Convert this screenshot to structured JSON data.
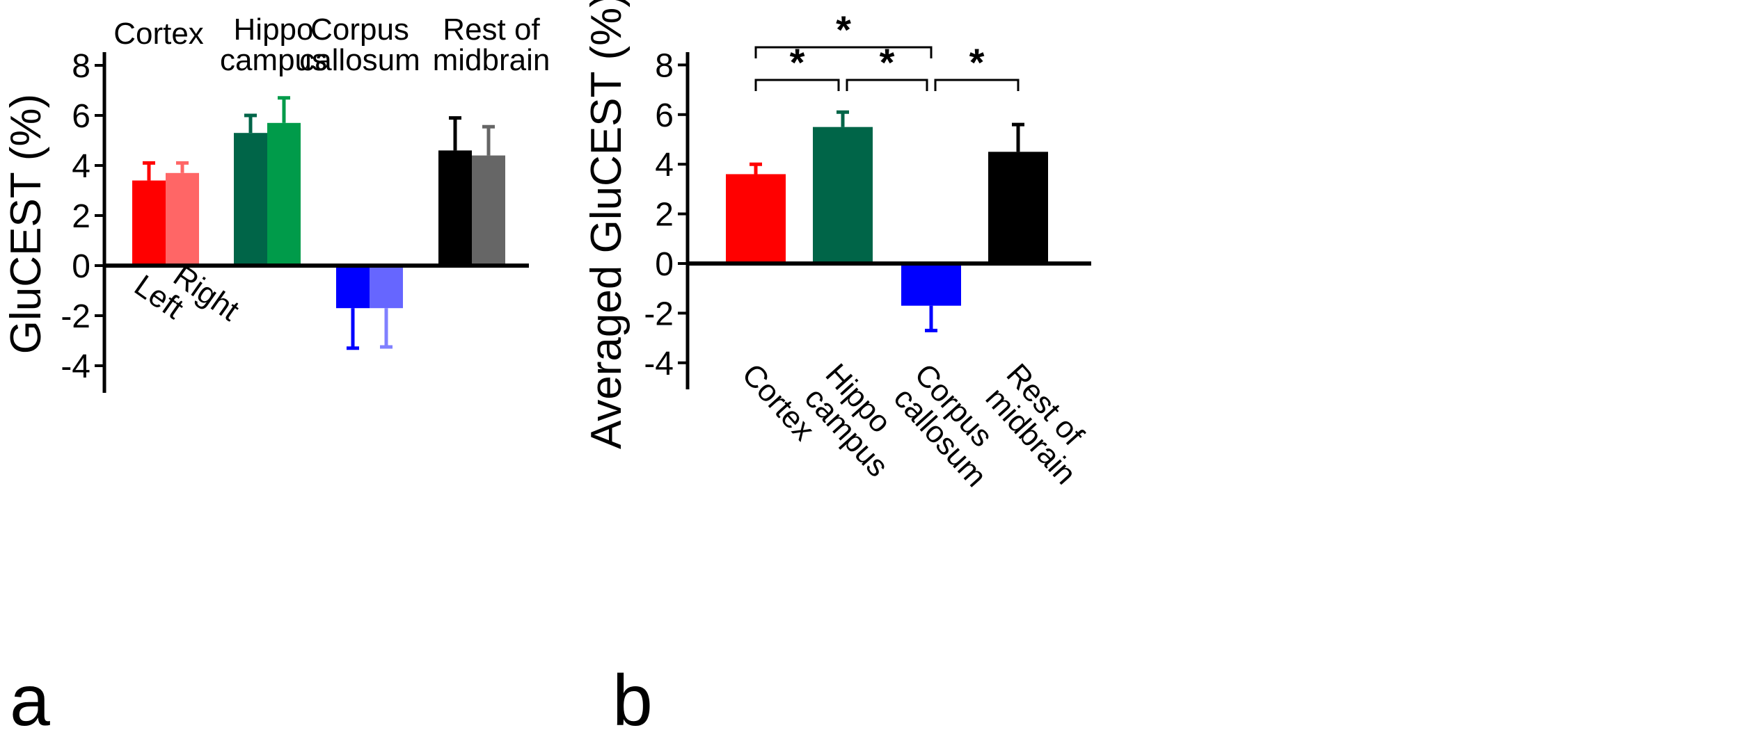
{
  "chart_data": [
    {
      "type": "bar",
      "panel_label": "a",
      "ylabel": "GluCEST (%)",
      "ylim": [
        -5,
        8.5
      ],
      "yticks": [
        8,
        6,
        4,
        2,
        0,
        -2,
        -4
      ],
      "ytick_labels": [
        "8",
        "6",
        "4",
        "2",
        "0",
        "-2",
        "-4"
      ],
      "categories": [
        "Cortex",
        "Hippo campus",
        "Corpus callosum",
        "Rest of midbrain"
      ],
      "category_label_lines": [
        [
          "Cortex"
        ],
        [
          "Hippo",
          "campus"
        ],
        [
          "Corpus",
          "callosum"
        ],
        [
          "Rest of",
          "midbrain"
        ]
      ],
      "series": [
        {
          "name": "Left",
          "values": [
            3.4,
            5.3,
            -1.7,
            4.6
          ],
          "errors": [
            0.7,
            0.7,
            1.6,
            1.3
          ],
          "colors": [
            "#ff0000",
            "#006548",
            "#0000ff",
            "#000000"
          ]
        },
        {
          "name": "Right",
          "values": [
            3.7,
            5.7,
            -1.7,
            4.4
          ],
          "errors": [
            0.4,
            1.0,
            1.55,
            1.15
          ],
          "colors": [
            "#ff6666",
            "#009b4a",
            "#6666ff",
            "#666666"
          ]
        }
      ]
    },
    {
      "type": "bar",
      "panel_label": "b",
      "ylabel": "Averaged GluCEST (%)",
      "ylim": [
        -5,
        8.5
      ],
      "yticks": [
        8,
        6,
        4,
        2,
        0,
        -2,
        -4
      ],
      "ytick_labels": [
        "8",
        "6",
        "4",
        "2",
        "0",
        "-2",
        "-4"
      ],
      "categories": [
        "Cortex",
        "Hippo campus",
        "Corpus callosum",
        "Rest of midbrain"
      ],
      "category_label_lines": [
        [
          "Cortex"
        ],
        [
          "Hippo",
          "campus"
        ],
        [
          "Corpus",
          "callosum"
        ],
        [
          "Rest of",
          "midbrain"
        ]
      ],
      "values": [
        3.6,
        5.5,
        -1.7,
        4.5
      ],
      "errors": [
        0.4,
        0.6,
        1.0,
        1.1
      ],
      "colors": [
        "#ff0000",
        "#006548",
        "#0000ff",
        "#000000"
      ],
      "significance": [
        {
          "from": 0,
          "to": 1,
          "label": "*",
          "level": 1
        },
        {
          "from": 1,
          "to": 2,
          "label": "*",
          "level": 1
        },
        {
          "from": 2,
          "to": 3,
          "label": "*",
          "level": 1
        },
        {
          "from": 0,
          "to": 2,
          "label": "*",
          "level": 2
        }
      ]
    }
  ]
}
